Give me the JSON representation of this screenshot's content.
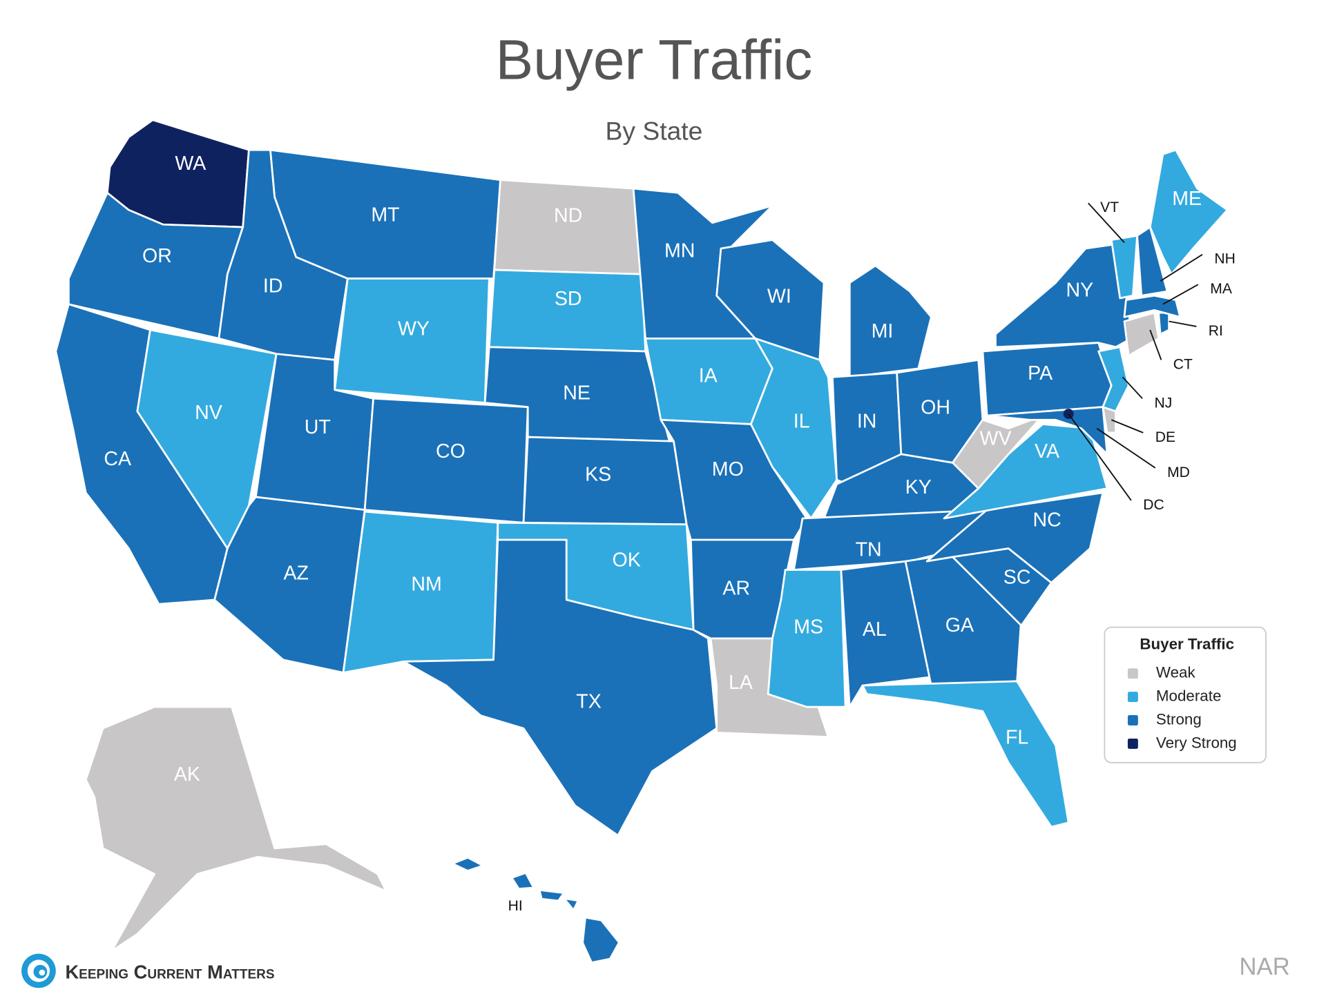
{
  "title": "Buyer Traffic",
  "subtitle": "By State",
  "legend": {
    "title": "Buyer Traffic",
    "items": [
      {
        "label": "Weak",
        "color": "#c8c6c6"
      },
      {
        "label": "Moderate",
        "color": "#33aadf"
      },
      {
        "label": "Strong",
        "color": "#1a71b8"
      },
      {
        "label": "Very Strong",
        "color": "#0f2260"
      }
    ]
  },
  "states": [
    {
      "label": "WA",
      "level": "Very Strong"
    },
    {
      "label": "OR",
      "level": "Strong"
    },
    {
      "label": "CA",
      "level": "Strong"
    },
    {
      "label": "NV",
      "level": "Moderate"
    },
    {
      "label": "ID",
      "level": "Strong"
    },
    {
      "label": "MT",
      "level": "Strong"
    },
    {
      "label": "WY",
      "level": "Moderate"
    },
    {
      "label": "UT",
      "level": "Strong"
    },
    {
      "label": "AZ",
      "level": "Strong"
    },
    {
      "label": "CO",
      "level": "Strong"
    },
    {
      "label": "NM",
      "level": "Moderate"
    },
    {
      "label": "ND",
      "level": "Weak"
    },
    {
      "label": "SD",
      "level": "Moderate"
    },
    {
      "label": "NE",
      "level": "Strong"
    },
    {
      "label": "KS",
      "level": "Strong"
    },
    {
      "label": "OK",
      "level": "Moderate"
    },
    {
      "label": "TX",
      "level": "Strong"
    },
    {
      "label": "MN",
      "level": "Strong"
    },
    {
      "label": "IA",
      "level": "Moderate"
    },
    {
      "label": "MO",
      "level": "Strong"
    },
    {
      "label": "AR",
      "level": "Strong"
    },
    {
      "label": "LA",
      "level": "Weak"
    },
    {
      "label": "WI",
      "level": "Strong"
    },
    {
      "label": "IL",
      "level": "Moderate"
    },
    {
      "label": "MI",
      "level": "Strong"
    },
    {
      "label": "IN",
      "level": "Strong"
    },
    {
      "label": "OH",
      "level": "Strong"
    },
    {
      "label": "KY",
      "level": "Strong"
    },
    {
      "label": "TN",
      "level": "Strong"
    },
    {
      "label": "MS",
      "level": "Moderate"
    },
    {
      "label": "AL",
      "level": "Strong"
    },
    {
      "label": "GA",
      "level": "Strong"
    },
    {
      "label": "FL",
      "level": "Moderate"
    },
    {
      "label": "SC",
      "level": "Strong"
    },
    {
      "label": "NC",
      "level": "Strong"
    },
    {
      "label": "VA",
      "level": "Moderate"
    },
    {
      "label": "WV",
      "level": "Weak"
    },
    {
      "label": "PA",
      "level": "Strong"
    },
    {
      "label": "NY",
      "level": "Strong"
    },
    {
      "label": "NJ",
      "level": "Moderate"
    },
    {
      "label": "MD",
      "level": "Strong"
    },
    {
      "label": "DE",
      "level": "Weak"
    },
    {
      "label": "CT",
      "level": "Weak"
    },
    {
      "label": "RI",
      "level": "Strong"
    },
    {
      "label": "MA",
      "level": "Strong"
    },
    {
      "label": "VT",
      "level": "Moderate"
    },
    {
      "label": "NH",
      "level": "Strong"
    },
    {
      "label": "ME",
      "level": "Moderate"
    },
    {
      "label": "DC",
      "level": "Very Strong"
    },
    {
      "label": "AK",
      "level": "Weak"
    },
    {
      "label": "HI",
      "level": "Strong"
    }
  ],
  "footer": {
    "brand": "Keeping Current Matters",
    "source": "NAR"
  }
}
